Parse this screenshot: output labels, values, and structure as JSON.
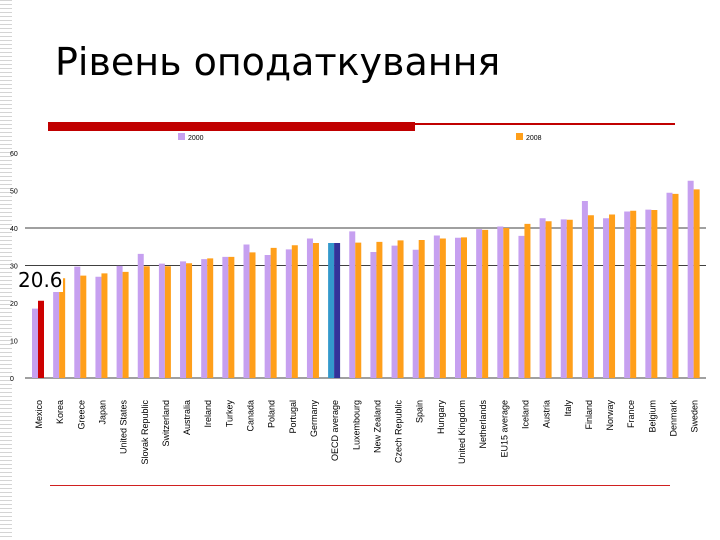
{
  "slide": {
    "title": "Рівень оподаткування",
    "highlight_value": "20.6"
  },
  "colors": {
    "bar2000": "#c6a0f0",
    "bar2008": "#ff9f1a",
    "highlight2000": "#e8002a",
    "highlight2008": "#cc0000",
    "oecd2000": "#3399cc",
    "oecd2008": "#333399",
    "accent": "#c00000"
  },
  "chart_data": {
    "type": "bar",
    "title": "",
    "xlabel": "",
    "ylabel": "",
    "ylim": [
      0,
      60
    ],
    "yticks": [
      "0",
      "10",
      "20",
      "30",
      "40",
      "50",
      "60"
    ],
    "categories": [
      "Mexico",
      "Korea",
      "Greece",
      "Japan",
      "United States",
      "Slovak Republic",
      "Switzerland",
      "Australia",
      "Ireland",
      "Turkey",
      "Canada",
      "Poland",
      "Portugal",
      "Germany",
      "OECD average",
      "Luxembourg",
      "New Zealand",
      "Czech Republic",
      "Spain",
      "Hungary",
      "United Kingdom",
      "Netherlands",
      "EU15 average",
      "Iceland",
      "Austria",
      "Italy",
      "Finland",
      "Norway",
      "France",
      "Belgium",
      "Denmark",
      "Sweden"
    ],
    "series": [
      {
        "name": "2000",
        "values": [
          18.5,
          23.6,
          29.7,
          27.0,
          29.9,
          33.1,
          30.5,
          31.1,
          31.7,
          32.3,
          35.6,
          32.8,
          34.3,
          37.2,
          36.0,
          39.1,
          33.6,
          35.3,
          34.2,
          38.0,
          37.4,
          39.7,
          40.4,
          37.9,
          42.6,
          42.3,
          47.2,
          42.6,
          44.4,
          44.9,
          49.4,
          52.6
        ]
      },
      {
        "name": "2008",
        "values": [
          20.6,
          26.6,
          27.3,
          27.9,
          28.3,
          29.8,
          29.8,
          30.6,
          31.9,
          32.3,
          33.5,
          34.7,
          35.4,
          36.0,
          36.0,
          36.1,
          36.3,
          36.7,
          36.8,
          37.2,
          37.5,
          39.5,
          40.0,
          41.1,
          41.8,
          42.2,
          43.4,
          43.6,
          44.6,
          44.8,
          49.1,
          50.3
        ]
      }
    ],
    "legend_position": "top",
    "grid": false
  }
}
